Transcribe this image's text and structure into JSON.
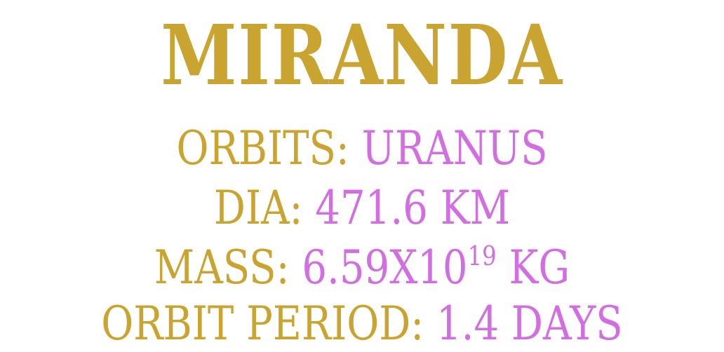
{
  "colors": {
    "label": "#C9A431",
    "value": "#D16FE0",
    "background": "#FFFFFF"
  },
  "title": "MIRANDA",
  "facts": {
    "orbits": {
      "label": "ORBITS:",
      "value": "URANUS"
    },
    "diameter": {
      "label": "DIA:",
      "value": "471.6 KM"
    },
    "mass": {
      "label": "MASS:",
      "value_base": "6.59X10",
      "value_exponent": "19",
      "value_unit": "KG"
    },
    "orbit_period": {
      "label": "ORBIT PERIOD:",
      "value": "1.4 DAYS"
    }
  }
}
